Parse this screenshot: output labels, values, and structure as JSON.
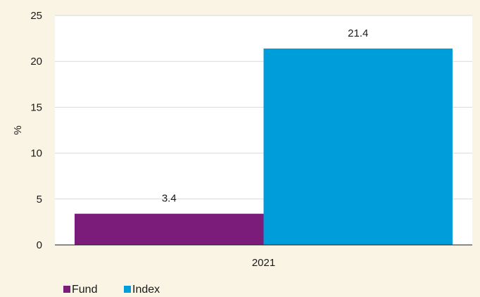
{
  "chart_data": {
    "type": "bar",
    "categories": [
      "2021"
    ],
    "series": [
      {
        "name": "Fund",
        "values": [
          3.4
        ],
        "color": "#7b1c7a"
      },
      {
        "name": "Index",
        "values": [
          21.4
        ],
        "color": "#009ddb"
      }
    ],
    "title": "",
    "xlabel": "",
    "ylabel": "%",
    "ylim": [
      0,
      25
    ],
    "yticks": [
      0,
      5,
      10,
      15,
      20,
      25
    ],
    "grid": true,
    "legend_position": "bottom-left",
    "colors": {
      "background": "#f9f4e3",
      "plot_background": "#ffffff",
      "gridline": "#d9d9d9",
      "axis": "#1a1a1a"
    }
  }
}
